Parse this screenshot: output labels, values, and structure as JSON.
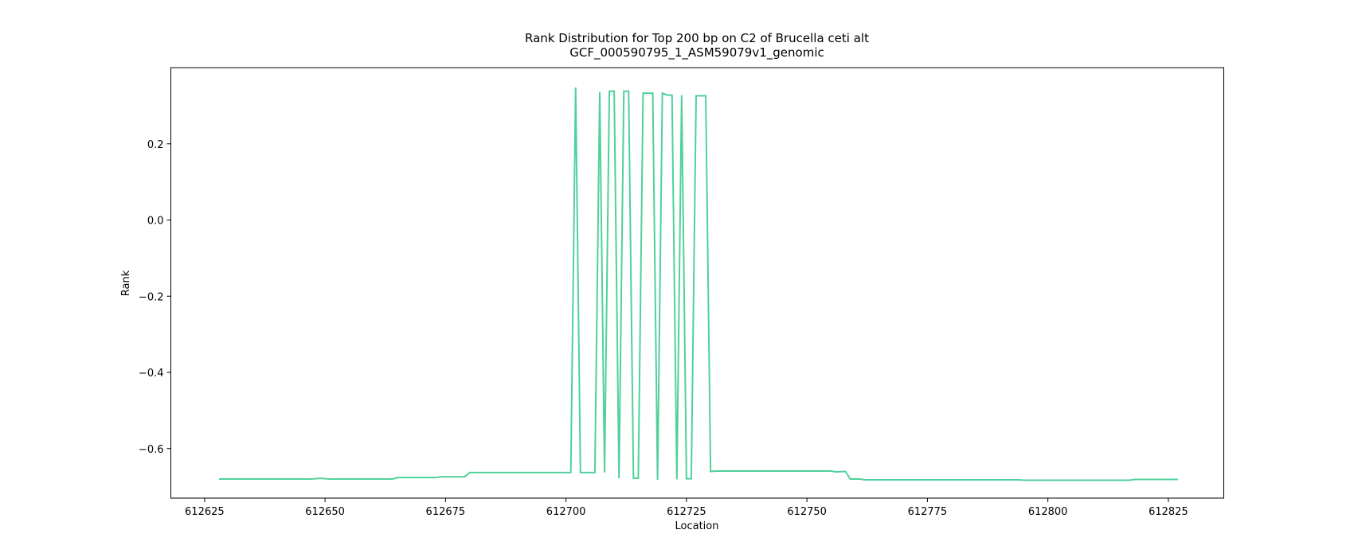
{
  "chart_data": {
    "type": "line",
    "title": "Rank Distribution for Top 200 bp on C2 of Brucella ceti alt",
    "subtitle": "GCF_000590795_1_ASM59079v1_genomic",
    "xlabel": "Location",
    "ylabel": "Rank",
    "xlim": [
      612618,
      612836.5
    ],
    "ylim": [
      -0.73,
      0.4
    ],
    "xticks": [
      612625,
      612650,
      612675,
      612700,
      612725,
      612750,
      612775,
      612800,
      612825
    ],
    "xtick_labels": [
      "612625",
      "612650",
      "612675",
      "612700",
      "612725",
      "612750",
      "612775",
      "612800",
      "612825"
    ],
    "yticks": [
      0.2,
      0.0,
      -0.2,
      -0.4,
      -0.6
    ],
    "ytick_labels": [
      "0.2",
      "0.0",
      "−0.2",
      "−0.4",
      "−0.6"
    ],
    "grid": false,
    "line_color": "#4fd19b",
    "series": [
      {
        "x": [
          612628,
          612647,
          612649,
          612651,
          612664,
          612665,
          612666,
          612673,
          612674,
          612679,
          612680,
          612701,
          612702,
          612703,
          612706,
          612707,
          612708,
          612709,
          612710,
          612711,
          612712,
          612713,
          612714,
          612715,
          612716,
          612718,
          612719,
          612720,
          612721,
          612722,
          612723,
          612724,
          612725,
          612726,
          612727,
          612728,
          612729,
          612730,
          612731,
          612755,
          612756,
          612758,
          612759,
          612761,
          612762,
          612794,
          612795,
          612817,
          612818,
          612827
        ],
        "y": [
          -0.68,
          -0.68,
          -0.678,
          -0.68,
          -0.68,
          -0.676,
          -0.676,
          -0.676,
          -0.674,
          -0.674,
          -0.663,
          -0.663,
          0.348,
          -0.663,
          -0.663,
          0.336,
          -0.663,
          0.338,
          0.338,
          -0.678,
          0.338,
          0.338,
          -0.678,
          -0.678,
          0.333,
          0.333,
          -0.682,
          0.333,
          0.328,
          0.328,
          -0.681,
          0.328,
          -0.679,
          -0.679,
          0.326,
          0.326,
          0.326,
          -0.66,
          -0.659,
          -0.659,
          -0.661,
          -0.66,
          -0.68,
          -0.68,
          -0.682,
          -0.682,
          -0.683,
          -0.683,
          -0.681,
          -0.681
        ]
      }
    ]
  }
}
